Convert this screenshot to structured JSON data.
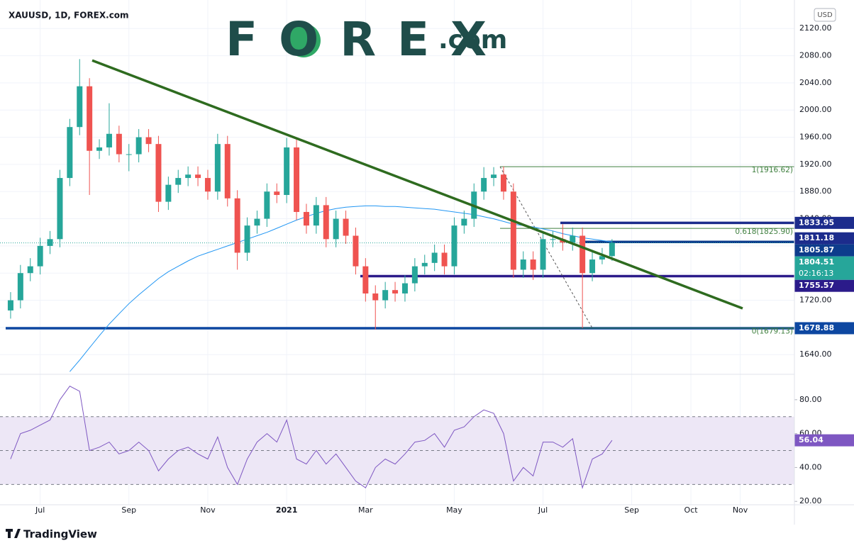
{
  "header": {
    "title": "XAUUSD, 1D, FOREX.com",
    "logo": "FOREX",
    "logo_suffix": ".com",
    "currency": "USD"
  },
  "footer": {
    "brand": "TradingView"
  },
  "chart_data": [
    {
      "type": "candlestick",
      "categories": [
        null,
        null,
        null,
        "Jul",
        null,
        null,
        null,
        null,
        null,
        null,
        null,
        null,
        "Sep",
        null,
        null,
        null,
        null,
        null,
        null,
        null,
        "Nov",
        null,
        null,
        null,
        null,
        null,
        null,
        null,
        "2021",
        null,
        null,
        null,
        null,
        null,
        null,
        null,
        "Mar",
        null,
        null,
        null,
        null,
        null,
        null,
        null,
        null,
        "May",
        null,
        null,
        null,
        null,
        null,
        null,
        null,
        null,
        "Jul",
        null,
        null,
        null,
        null,
        null,
        null,
        null,
        null,
        "Sep",
        null,
        null,
        null,
        null,
        null,
        "Oct",
        null,
        null,
        null,
        null,
        "Nov",
        null,
        null,
        null,
        null,
        null
      ],
      "open": [
        1705,
        1720,
        1760,
        1770,
        1800,
        1810,
        1900,
        1975,
        2035,
        1940,
        1945,
        1965,
        1935,
        1935,
        1960,
        1950,
        1865,
        1890,
        1900,
        1905,
        1900,
        1880,
        1950,
        1870,
        1790,
        1830,
        1840,
        1880,
        1875,
        1945,
        1850,
        1830,
        1860,
        1810,
        1840,
        1815,
        1770,
        1730,
        1720,
        1735,
        1730,
        1745,
        1770,
        1775,
        1790,
        1770,
        1830,
        1840,
        1880,
        1900,
        1905,
        1880,
        1765,
        1780,
        1765,
        1810,
        1810,
        1805,
        1815,
        1760,
        1780,
        1785,
        null,
        null,
        null,
        null,
        null,
        null,
        null,
        null,
        null,
        null,
        null,
        null,
        null,
        null,
        null,
        null,
        null,
        null
      ],
      "high": [
        1732,
        1772,
        1782,
        1812,
        1822,
        1912,
        1987,
        2075,
        2047,
        1957,
        2010,
        1977,
        1950,
        1972,
        1972,
        1962,
        1902,
        1912,
        1917,
        1917,
        1912,
        1965,
        1962,
        1882,
        1842,
        1852,
        1892,
        1892,
        1959,
        1957,
        1862,
        1872,
        1872,
        1852,
        1852,
        1827,
        1782,
        1742,
        1747,
        1747,
        1757,
        1782,
        1787,
        1802,
        1802,
        1842,
        1852,
        1892,
        1916,
        1916,
        1917,
        1892,
        1792,
        1792,
        1822,
        1822,
        1832,
        1827,
        1827,
        1792,
        1797,
        1810,
        null,
        null,
        null,
        null,
        null,
        null,
        null,
        null,
        null,
        null,
        null,
        null,
        null,
        null,
        null,
        null,
        null,
        null
      ],
      "low": [
        1693,
        1708,
        1748,
        1758,
        1788,
        1798,
        1888,
        1963,
        1875,
        1928,
        1933,
        1923,
        1910,
        1923,
        1938,
        1850,
        1853,
        1878,
        1888,
        1888,
        1868,
        1868,
        1858,
        1765,
        1778,
        1818,
        1828,
        1863,
        1863,
        1838,
        1818,
        1818,
        1798,
        1798,
        1803,
        1758,
        1718,
        1677,
        1708,
        1718,
        1718,
        1733,
        1758,
        1763,
        1758,
        1758,
        1818,
        1828,
        1868,
        1888,
        1868,
        1753,
        1753,
        1750,
        1753,
        1798,
        1793,
        1793,
        1679,
        1748,
        1773,
        1778,
        null,
        null,
        null,
        null,
        null,
        null,
        null,
        null,
        null,
        null,
        null,
        null,
        null,
        null,
        null,
        null,
        null,
        null
      ],
      "close": [
        1720,
        1760,
        1770,
        1800,
        1810,
        1900,
        1975,
        2035,
        1940,
        1945,
        1965,
        1935,
        1935,
        1960,
        1950,
        1865,
        1890,
        1900,
        1905,
        1900,
        1880,
        1950,
        1870,
        1790,
        1830,
        1840,
        1880,
        1875,
        1945,
        1850,
        1830,
        1860,
        1810,
        1840,
        1815,
        1770,
        1730,
        1720,
        1735,
        1730,
        1745,
        1770,
        1775,
        1790,
        1770,
        1830,
        1840,
        1880,
        1900,
        1905,
        1880,
        1765,
        1780,
        1765,
        1810,
        1810,
        1805,
        1815,
        1760,
        1780,
        1785,
        1804.51,
        null,
        null,
        null,
        null,
        null,
        null,
        null,
        null,
        null,
        null,
        null,
        null,
        null,
        null,
        null,
        null,
        null,
        null
      ],
      "up_color": "#26a69a",
      "down_color": "#ef5350",
      "countdown": "02:16:13",
      "price_color": "#26a69a",
      "ylim": [
        1611,
        2162
      ],
      "yticks": [
        {
          "value": 1640,
          "label": "1640.00"
        },
        {
          "value": 1680,
          "label": "1680.00"
        },
        {
          "value": 1720,
          "label": "1720.00"
        },
        {
          "value": 1760,
          "label": "1760.00"
        },
        {
          "value": 1800,
          "label": "1800.00"
        },
        {
          "value": 1840,
          "label": "1840.00"
        },
        {
          "value": 1880,
          "label": "1880.00"
        },
        {
          "value": 1920,
          "label": "1920.00"
        },
        {
          "value": 1960,
          "label": "1960.00"
        },
        {
          "value": 2000,
          "label": "2000.00"
        },
        {
          "value": 2040,
          "label": "2040.00"
        },
        {
          "value": 2080,
          "label": "2080.00"
        },
        {
          "value": 2120,
          "label": "2120.00"
        }
      ],
      "grid": true,
      "moving_average": {
        "color": "#2196f3",
        "values": [
          null,
          null,
          null,
          null,
          null,
          null,
          1615,
          1632,
          1650,
          1668,
          1685,
          1700,
          1715,
          1728,
          1740,
          1752,
          1762,
          1770,
          1778,
          1785,
          1790,
          1795,
          1800,
          1805,
          1810,
          1815,
          1820,
          1826,
          1832,
          1838,
          1843,
          1848,
          1852,
          1855,
          1857,
          1858,
          1859,
          1859,
          1858,
          1858,
          1857,
          1856,
          1855,
          1854,
          1852,
          1850,
          1848,
          1846,
          1843,
          1840,
          1836,
          1832,
          1830,
          1828,
          1825,
          1822,
          1818,
          1815,
          1812,
          1810,
          1808,
          1806,
          null,
          null,
          null,
          null,
          null,
          null,
          null,
          null,
          null,
          null,
          null,
          null,
          null,
          null,
          null,
          null,
          null,
          null
        ]
      },
      "trendline": {
        "color": "#2e6b1f",
        "values": [
          2073,
          1708
        ]
      },
      "fibonacci": {
        "color": "#3f7f3f",
        "levels": [
          {
            "value": 1916.62,
            "label": "1(1916.62)"
          },
          {
            "value": 1825.9,
            "label": "0.618(1825.90)"
          },
          {
            "value": 1679.13,
            "label": "0(1679.13)"
          }
        ]
      },
      "levels": [
        {
          "value": 1833.95,
          "color": "#1c2c8c"
        },
        {
          "value": 1811.18,
          "color": "#1c2c8c"
        },
        {
          "value": 1805.87,
          "color": "#0d3c8c"
        },
        {
          "value": 1755.57,
          "color": "#2b1b8a"
        },
        {
          "value": 1678.88,
          "color": "#0d47a1"
        }
      ]
    },
    {
      "type": "line",
      "series": [
        {
          "color": "#7e57c2",
          "values": [
            45,
            60,
            62,
            65,
            68,
            80,
            88,
            85,
            50,
            52,
            55,
            48,
            50,
            55,
            50,
            38,
            45,
            50,
            52,
            48,
            45,
            58,
            40,
            30,
            45,
            55,
            60,
            55,
            68,
            45,
            42,
            50,
            42,
            48,
            40,
            32,
            28,
            40,
            45,
            42,
            48,
            55,
            56,
            60,
            52,
            62,
            64,
            70,
            74,
            72,
            60,
            32,
            40,
            35,
            55,
            55,
            52,
            57,
            28,
            45,
            48,
            56.04,
            null,
            null,
            null,
            null,
            null,
            null,
            null,
            null,
            null,
            null,
            null,
            null,
            null,
            null,
            null,
            null,
            null,
            null
          ]
        }
      ],
      "ylim": [
        18,
        95
      ],
      "yticks": [
        {
          "value": 20,
          "label": "20.00"
        },
        {
          "value": 40,
          "label": "40.00"
        },
        {
          "value": 60,
          "label": "60.00"
        },
        {
          "value": 80,
          "label": "80.00"
        }
      ],
      "band": [
        30,
        70
      ],
      "midline": 50,
      "band_color": "#ede7f6"
    }
  ]
}
